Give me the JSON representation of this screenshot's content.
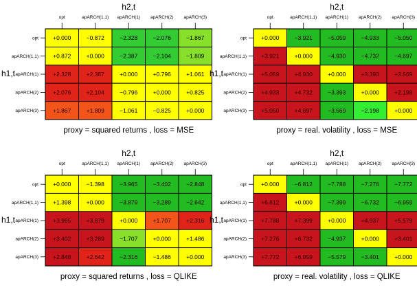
{
  "chart_data": [
    {
      "type": "heatmap",
      "title": "proxy = squared returns , loss = MSE",
      "xlabel": "h2,t",
      "ylabel": "h1,t",
      "columns": [
        "opt",
        "apARCH(1,1)",
        "apARCH(1)",
        "apARCH(2)",
        "apARCH(3)"
      ],
      "rows": [
        "opt",
        "apARCH(1,1)",
        "apARCH(1)",
        "apARCH(2)",
        "apARCH(3)"
      ],
      "values": [
        [
          "+0.000",
          "−0.872",
          "−2.328",
          "−2.076",
          "−1.867"
        ],
        [
          "+0.872",
          "+0.000",
          "−2.387",
          "−2.104",
          "−1.809"
        ],
        [
          "+2.328",
          "+2.387",
          "+0.000",
          "+0.796",
          "+1.061"
        ],
        [
          "+2.076",
          "+2.104",
          "−0.796",
          "+0.000",
          "+0.825"
        ],
        [
          "+1.867",
          "+1.809",
          "−1.061",
          "−0.825",
          "+0.000"
        ]
      ],
      "cell_colors": [
        [
          "#FFFF00",
          "#FFFF00",
          "#33CC33",
          "#33CC33",
          "#88E02A"
        ],
        [
          "#FFFF00",
          "#FFFF00",
          "#33CC33",
          "#33CC33",
          "#88E02A"
        ],
        [
          "#E0241A",
          "#E0241A",
          "#FFFF00",
          "#FFFF00",
          "#FFFF00"
        ],
        [
          "#E0241A",
          "#E0241A",
          "#FFFF00",
          "#FFFF00",
          "#FFFF00"
        ],
        [
          "#F2541A",
          "#F2541A",
          "#FFFF00",
          "#FFFF00",
          "#FFFF00"
        ]
      ]
    },
    {
      "type": "heatmap",
      "title": "proxy = real. volatility , loss = MSE",
      "xlabel": "h2,t",
      "ylabel": "h1,t",
      "columns": [
        "opt",
        "apARCH(1,1)",
        "apARCH(1)",
        "apARCH(2)",
        "apARCH(3)"
      ],
      "rows": [
        "opt",
        "apARCH(1,1)",
        "apARCH(1)",
        "apARCH(2)",
        "apARCH(3)"
      ],
      "values": [
        [
          "+0.000",
          "−3.921",
          "−5.059",
          "−4.933",
          "−5.050"
        ],
        [
          "+3.921",
          "+0.000",
          "−4.930",
          "−4.732",
          "−4.697"
        ],
        [
          "+5.059",
          "+4.930",
          "+0.000",
          "+3.393",
          "+3.569"
        ],
        [
          "+4.933",
          "+4.732",
          "−3.393",
          "+0.000",
          "+2.198"
        ],
        [
          "+5.050",
          "+4.697",
          "−3.569",
          "−2.198",
          "+0.000"
        ]
      ],
      "cell_colors": [
        [
          "#FFFF00",
          "#22BB22",
          "#22BB22",
          "#22BB22",
          "#22BB22"
        ],
        [
          "#C8141C",
          "#FFFF00",
          "#22BB22",
          "#22BB22",
          "#22BB22"
        ],
        [
          "#C8141C",
          "#C8141C",
          "#FFFF00",
          "#C8141C",
          "#C8141C"
        ],
        [
          "#C8141C",
          "#C8141C",
          "#22BB22",
          "#FFFF00",
          "#C8141C"
        ],
        [
          "#C8141C",
          "#C8141C",
          "#22BB22",
          "#33EE33",
          "#FFFF00"
        ]
      ]
    },
    {
      "type": "heatmap",
      "title": "proxy = squared returns , loss = QLIKE",
      "xlabel": "h2,t",
      "ylabel": "h1,t",
      "columns": [
        "opt",
        "apARCH(1,1)",
        "apARCH(1)",
        "apARCH(2)",
        "apARCH(3)"
      ],
      "rows": [
        "opt",
        "apARCH(1,1)",
        "apARCH(1)",
        "apARCH(2)",
        "apARCH(3)"
      ],
      "values": [
        [
          "+0.000",
          "−1.398",
          "−3.965",
          "−3.402",
          "−2.848"
        ],
        [
          "+1.398",
          "+0.000",
          "−3.879",
          "−3.289",
          "−2.642"
        ],
        [
          "+3.965",
          "+3.879",
          "+0.000",
          "+1.707",
          "+2.316"
        ],
        [
          "+3.402",
          "+3.289",
          "−1.707",
          "+0.000",
          "+1.486"
        ],
        [
          "+2.848",
          "+2.642",
          "−2.316",
          "−1.486",
          "+0.000"
        ]
      ],
      "cell_colors": [
        [
          "#FFFF00",
          "#FFFF00",
          "#22BB22",
          "#22BB22",
          "#22BB22"
        ],
        [
          "#FFFF00",
          "#FFFF00",
          "#22BB22",
          "#22BB22",
          "#22BB22"
        ],
        [
          "#C8141C",
          "#C8141C",
          "#FFFF00",
          "#F2541A",
          "#E0241A"
        ],
        [
          "#C8141C",
          "#C8141C",
          "#88E02A",
          "#FFFF00",
          "#FFFF00"
        ],
        [
          "#C8141C",
          "#E0241A",
          "#22BB22",
          "#FFFF00",
          "#FFFF00"
        ]
      ]
    },
    {
      "type": "heatmap",
      "title": "proxy = real. volatility , loss = QLIKE",
      "xlabel": "h2,t",
      "ylabel": "h1,t",
      "columns": [
        "opt",
        "apARCH(1,1)",
        "apARCH(1)",
        "apARCH(2)",
        "apARCH(3)"
      ],
      "rows": [
        "opt",
        "apARCH(1,1)",
        "apARCH(1)",
        "apARCH(2)",
        "apARCH(3)"
      ],
      "values": [
        [
          "+0.000",
          "−6.812",
          "−7.788",
          "−7.276",
          "−7.772"
        ],
        [
          "+6.812",
          "+0.000",
          "−7.399",
          "−6.732",
          "−6.959"
        ],
        [
          "+7.788",
          "+7.399",
          "+0.000",
          "+4.937",
          "+5.579"
        ],
        [
          "+7.276",
          "+6.732",
          "−4.937",
          "+0.000",
          "+3.401"
        ],
        [
          "+7.772",
          "+6.959",
          "−5.579",
          "−3.401",
          "+0.000"
        ]
      ],
      "cell_colors": [
        [
          "#FFFF00",
          "#22BB22",
          "#22BB22",
          "#22BB22",
          "#22BB22"
        ],
        [
          "#C8141C",
          "#FFFF00",
          "#22BB22",
          "#22BB22",
          "#22BB22"
        ],
        [
          "#C8141C",
          "#C8141C",
          "#FFFF00",
          "#C8141C",
          "#C8141C"
        ],
        [
          "#C8141C",
          "#C8141C",
          "#22BB22",
          "#FFFF00",
          "#C8141C"
        ],
        [
          "#C8141C",
          "#C8141C",
          "#22BB22",
          "#22BB22",
          "#FFFF00"
        ]
      ]
    }
  ]
}
